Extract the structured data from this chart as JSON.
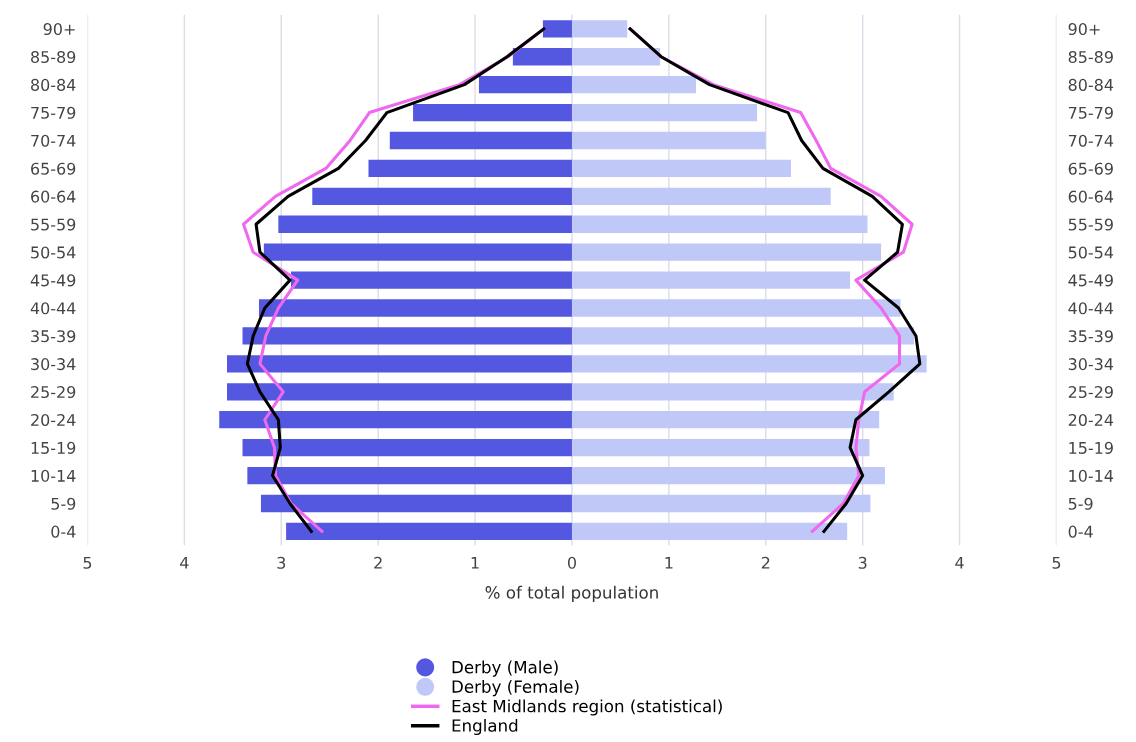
{
  "chart_data": {
    "type": "bar",
    "orientation": "horizontal",
    "xlabel": "% of total population",
    "categories": [
      "90+",
      "85-89",
      "80-84",
      "75-79",
      "70-74",
      "65-69",
      "60-64",
      "55-59",
      "50-54",
      "45-49",
      "40-44",
      "35-39",
      "30-34",
      "25-29",
      "20-24",
      "15-19",
      "10-14",
      "5-9",
      "0-4"
    ],
    "series": [
      {
        "name": "Derby (Male)",
        "color": "#5457e0",
        "values": [
          -0.3,
          -0.61,
          -0.96,
          -1.64,
          -1.88,
          -2.1,
          -2.68,
          -3.03,
          -3.18,
          -2.9,
          -3.23,
          -3.4,
          -3.56,
          -3.56,
          -3.64,
          -3.4,
          -3.35,
          -3.21,
          -2.95
        ]
      },
      {
        "name": "Derby (Female)",
        "color": "#c0c8f8",
        "values": [
          0.57,
          0.91,
          1.28,
          1.91,
          2.0,
          2.26,
          2.67,
          3.05,
          3.19,
          2.87,
          3.39,
          3.53,
          3.66,
          3.32,
          3.17,
          3.07,
          3.23,
          3.08,
          2.84
        ]
      },
      {
        "name": "East Midlands region (statistical)",
        "type": "line",
        "color": "#f068f0",
        "values": [
          -0.29,
          -0.66,
          -1.16,
          -2.09,
          -2.29,
          -2.54,
          -3.06,
          -3.39,
          -3.29,
          -2.83,
          -3.03,
          -3.16,
          -3.22,
          -2.98,
          -3.17,
          -3.07,
          -3.06,
          -2.9,
          -2.58
        ]
      },
      {
        "name": "England",
        "type": "line",
        "color": "#000000",
        "values": [
          -0.29,
          -0.67,
          -1.11,
          -1.91,
          -2.13,
          -2.41,
          -2.93,
          -3.26,
          -3.22,
          -2.91,
          -3.17,
          -3.29,
          -3.35,
          -3.22,
          -3.03,
          -3.01,
          -3.09,
          -2.91,
          -2.69
        ]
      },
      {
        "type": "line",
        "color": "#f068f0",
        "values": [
          0.6,
          0.92,
          1.46,
          2.36,
          2.52,
          2.67,
          3.19,
          3.51,
          3.42,
          2.93,
          3.19,
          3.38,
          3.38,
          3.02,
          2.96,
          2.93,
          2.96,
          2.8,
          2.48
        ]
      },
      {
        "type": "line",
        "color": "#000000",
        "values": [
          0.6,
          0.92,
          1.42,
          2.23,
          2.37,
          2.59,
          3.1,
          3.41,
          3.36,
          3.02,
          3.37,
          3.55,
          3.59,
          3.27,
          2.93,
          2.87,
          3.0,
          2.83,
          2.6
        ]
      }
    ],
    "xlim": [
      -5,
      5
    ],
    "xticks": [
      {
        "value": -5,
        "label": "5"
      },
      {
        "value": -4,
        "label": "4"
      },
      {
        "value": -3,
        "label": "3"
      },
      {
        "value": -2,
        "label": "2"
      },
      {
        "value": -1,
        "label": "1"
      },
      0,
      1,
      2,
      3,
      4,
      5
    ],
    "stacked": true,
    "grid": "x",
    "legend": "bottom"
  }
}
